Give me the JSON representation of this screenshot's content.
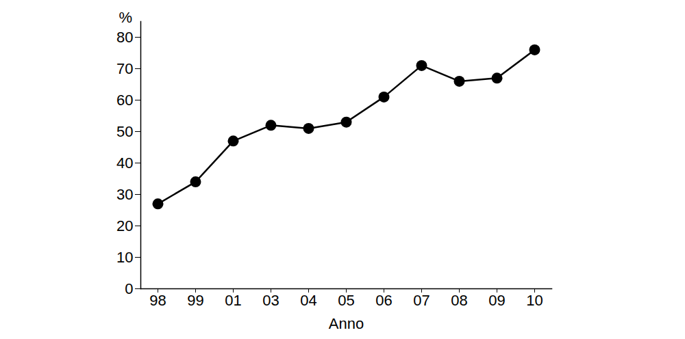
{
  "chart_data": {
    "type": "line",
    "categories": [
      "98",
      "99",
      "01",
      "03",
      "04",
      "05",
      "06",
      "07",
      "08",
      "09",
      "10"
    ],
    "values": [
      27,
      34,
      47,
      52,
      51,
      53,
      61,
      71,
      66,
      67,
      76
    ],
    "x_label": "Anno",
    "y_label": "%",
    "color": "#000000",
    "marker": "circle",
    "grid": false,
    "ylim": [
      0,
      85
    ],
    "yticks": [
      0,
      10,
      20,
      30,
      40,
      50,
      60,
      70,
      80
    ]
  }
}
